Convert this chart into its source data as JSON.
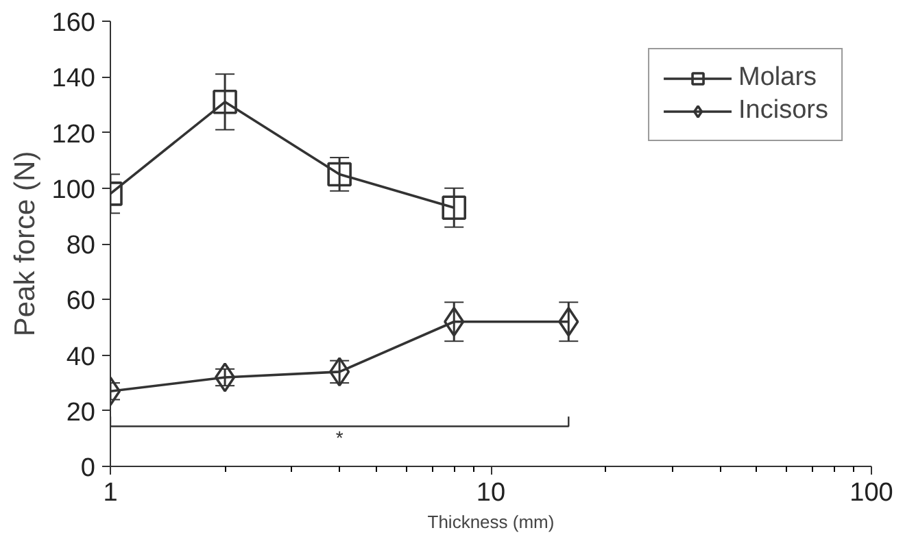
{
  "chart_data": {
    "type": "line",
    "xlabel": "Thickness (mm)",
    "ylabel": "Peak force (N)",
    "log": "x",
    "xlim": [
      1,
      100
    ],
    "xticks": [
      1,
      10,
      100
    ],
    "ylim": [
      0,
      160
    ],
    "yticks": [
      0,
      20,
      40,
      60,
      80,
      100,
      120,
      140,
      160
    ],
    "grid": false,
    "legend": "top right",
    "line_style": "solid",
    "annotations": [
      "*"
    ],
    "series": [
      {
        "name": "Molars",
        "color": "#333333",
        "marker": "square",
        "x": [
          1,
          2,
          4,
          8
        ],
        "values": [
          98,
          131,
          105,
          93
        ],
        "errors": [
          7,
          10,
          6,
          7
        ]
      },
      {
        "name": "Incisors",
        "color": "#333333",
        "marker": "diamond",
        "x": [
          1,
          2,
          4,
          8,
          16
        ],
        "values": [
          27,
          32,
          34,
          52,
          52
        ],
        "errors": [
          3,
          3,
          4,
          7,
          7
        ]
      }
    ]
  }
}
